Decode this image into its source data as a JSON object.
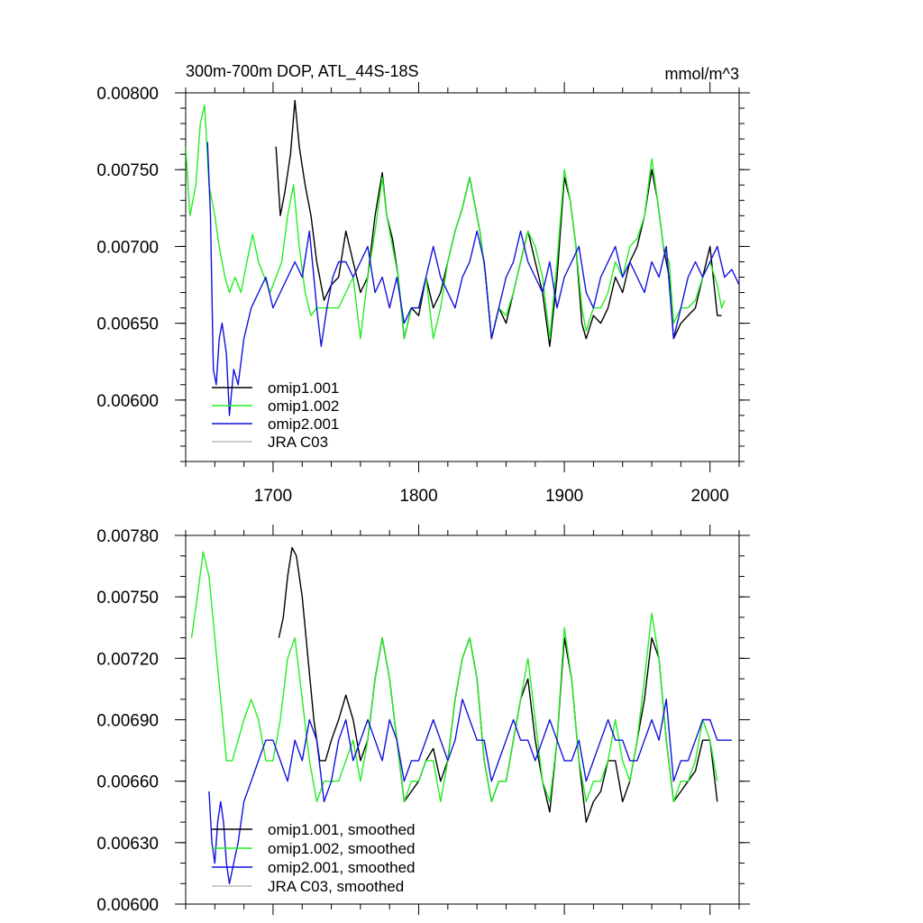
{
  "chart_data": [
    {
      "type": "line",
      "title": "300m-700m DOP, ATL_44S-18S",
      "units": "mmol/m^3",
      "xlim": [
        1640,
        2020
      ],
      "ylim": [
        0.0056,
        0.008
      ],
      "yticks": [
        "0.00600",
        "0.00650",
        "0.00700",
        "0.00750",
        "0.00800"
      ],
      "ytick_values": [
        0.006,
        0.0065,
        0.007,
        0.0075,
        0.008
      ],
      "xticks": [
        "1700",
        "1800",
        "1900",
        "2000"
      ],
      "xtick_values": [
        1700,
        1800,
        1900,
        2000
      ],
      "series": [
        {
          "name": "omip1.001",
          "color": "#000000",
          "x": [
            1702,
            1705,
            1708,
            1712,
            1715,
            1718,
            1722,
            1726,
            1730,
            1735,
            1740,
            1745,
            1750,
            1755,
            1760,
            1765,
            1770,
            1775,
            1778,
            1782,
            1786,
            1790,
            1795,
            1800,
            1805,
            1810,
            1815,
            1820,
            1825,
            1830,
            1835,
            1838,
            1842,
            1846,
            1850,
            1855,
            1860,
            1865,
            1870,
            1875,
            1880,
            1885,
            1890,
            1895,
            1900,
            1904,
            1908,
            1912,
            1915,
            1920,
            1925,
            1930,
            1935,
            1940,
            1945,
            1950,
            1955,
            1960,
            1964,
            1968,
            1972,
            1975,
            1980,
            1985,
            1990,
            1995,
            2000,
            2005,
            2008
          ],
          "y": [
            0.00765,
            0.0072,
            0.00735,
            0.0076,
            0.00795,
            0.00765,
            0.0074,
            0.0072,
            0.0069,
            0.00665,
            0.00675,
            0.0068,
            0.0071,
            0.0069,
            0.0067,
            0.0068,
            0.0072,
            0.00748,
            0.0072,
            0.00705,
            0.0068,
            0.0064,
            0.0066,
            0.00655,
            0.0068,
            0.0066,
            0.0067,
            0.0069,
            0.0071,
            0.00725,
            0.00745,
            0.0073,
            0.0071,
            0.0068,
            0.0064,
            0.0066,
            0.0065,
            0.0067,
            0.0069,
            0.0071,
            0.0069,
            0.0067,
            0.00635,
            0.0068,
            0.00745,
            0.0073,
            0.007,
            0.0065,
            0.0064,
            0.00655,
            0.0065,
            0.0066,
            0.0068,
            0.0067,
            0.0069,
            0.007,
            0.0072,
            0.0075,
            0.0073,
            0.007,
            0.0068,
            0.0064,
            0.0065,
            0.00655,
            0.0066,
            0.0068,
            0.007,
            0.00655,
            0.00655
          ]
        },
        {
          "name": "omip1.002",
          "color": "#22ee22",
          "x": [
            1640,
            1643,
            1647,
            1650,
            1653,
            1656,
            1660,
            1663,
            1667,
            1670,
            1674,
            1678,
            1682,
            1686,
            1690,
            1694,
            1698,
            1702,
            1706,
            1710,
            1714,
            1718,
            1722,
            1726,
            1730,
            1735,
            1740,
            1745,
            1750,
            1755,
            1760,
            1765,
            1770,
            1775,
            1778,
            1782,
            1786,
            1790,
            1795,
            1800,
            1805,
            1810,
            1815,
            1820,
            1825,
            1830,
            1835,
            1838,
            1842,
            1846,
            1850,
            1855,
            1860,
            1865,
            1870,
            1875,
            1880,
            1885,
            1890,
            1895,
            1900,
            1904,
            1908,
            1912,
            1915,
            1920,
            1925,
            1930,
            1935,
            1940,
            1945,
            1950,
            1955,
            1960,
            1964,
            1968,
            1972,
            1975,
            1980,
            1985,
            1990,
            1995,
            2000,
            2005,
            2008,
            2010
          ],
          "y": [
            0.00765,
            0.0072,
            0.0074,
            0.0078,
            0.00792,
            0.0074,
            0.0072,
            0.007,
            0.0068,
            0.0067,
            0.0068,
            0.0067,
            0.0069,
            0.00708,
            0.0069,
            0.0068,
            0.0067,
            0.0068,
            0.0069,
            0.0072,
            0.0074,
            0.007,
            0.0067,
            0.00655,
            0.0066,
            0.0066,
            0.0066,
            0.0066,
            0.0067,
            0.0068,
            0.0064,
            0.0068,
            0.0071,
            0.00745,
            0.0072,
            0.007,
            0.0068,
            0.0064,
            0.0066,
            0.0066,
            0.0068,
            0.0064,
            0.0066,
            0.0069,
            0.0071,
            0.00725,
            0.00745,
            0.0073,
            0.0071,
            0.0068,
            0.0064,
            0.0066,
            0.00655,
            0.0067,
            0.0069,
            0.0071,
            0.007,
            0.0068,
            0.0064,
            0.0069,
            0.0075,
            0.0073,
            0.007,
            0.0066,
            0.00645,
            0.0066,
            0.0066,
            0.0067,
            0.0069,
            0.0068,
            0.007,
            0.00705,
            0.0072,
            0.00757,
            0.0073,
            0.007,
            0.0069,
            0.0065,
            0.0066,
            0.0066,
            0.00665,
            0.0068,
            0.0069,
            0.00675,
            0.0066,
            0.00665
          ]
        },
        {
          "name": "omip2.001",
          "color": "#1111dd",
          "x": [
            1655,
            1657,
            1659,
            1661,
            1663,
            1665,
            1668,
            1670,
            1673,
            1676,
            1680,
            1685,
            1690,
            1695,
            1700,
            1705,
            1710,
            1715,
            1720,
            1725,
            1728,
            1730,
            1733,
            1737,
            1741,
            1745,
            1750,
            1755,
            1760,
            1765,
            1770,
            1775,
            1780,
            1785,
            1790,
            1795,
            1800,
            1805,
            1810,
            1815,
            1820,
            1825,
            1830,
            1835,
            1840,
            1845,
            1850,
            1855,
            1860,
            1865,
            1870,
            1875,
            1880,
            1885,
            1890,
            1895,
            1900,
            1905,
            1910,
            1915,
            1920,
            1925,
            1930,
            1935,
            1940,
            1945,
            1950,
            1955,
            1960,
            1965,
            1970,
            1975,
            1980,
            1985,
            1990,
            1995,
            2000,
            2005,
            2010,
            2015,
            2020
          ],
          "y": [
            0.00768,
            0.0072,
            0.0062,
            0.0061,
            0.0064,
            0.0065,
            0.0063,
            0.0059,
            0.0062,
            0.0061,
            0.0064,
            0.0066,
            0.0067,
            0.0068,
            0.0066,
            0.0067,
            0.0068,
            0.0069,
            0.0068,
            0.0071,
            0.0068,
            0.0066,
            0.00635,
            0.0066,
            0.0068,
            0.0069,
            0.0069,
            0.0068,
            0.0069,
            0.007,
            0.0067,
            0.0068,
            0.0066,
            0.0068,
            0.0065,
            0.0066,
            0.0066,
            0.0068,
            0.007,
            0.0068,
            0.0067,
            0.0066,
            0.0068,
            0.0069,
            0.0071,
            0.0069,
            0.0064,
            0.0066,
            0.0068,
            0.0069,
            0.0071,
            0.0069,
            0.0068,
            0.0067,
            0.0069,
            0.0066,
            0.0068,
            0.0069,
            0.007,
            0.0067,
            0.0066,
            0.0068,
            0.0069,
            0.007,
            0.0068,
            0.0069,
            0.0068,
            0.0067,
            0.0069,
            0.0068,
            0.007,
            0.0064,
            0.0066,
            0.0068,
            0.0069,
            0.0068,
            0.0069,
            0.007,
            0.0068,
            0.00685,
            0.00675
          ]
        },
        {
          "name": "JRA C03",
          "color": "#bbbbbb",
          "x": [],
          "y": []
        }
      ]
    },
    {
      "type": "line",
      "title": "",
      "xlim": [
        1640,
        2020
      ],
      "ylim": [
        0.006,
        0.0078
      ],
      "yticks": [
        "0.00600",
        "0.00630",
        "0.00660",
        "0.00690",
        "0.00720",
        "0.00750",
        "0.00780"
      ],
      "ytick_values": [
        0.006,
        0.0063,
        0.0066,
        0.0069,
        0.0072,
        0.0075,
        0.0078
      ],
      "xticks": [],
      "xtick_values": [
        1700,
        1800,
        1900,
        2000
      ],
      "series": [
        {
          "name": "omip1.001, smoothed",
          "color": "#000000",
          "x": [
            1704,
            1707,
            1710,
            1713,
            1716,
            1720,
            1724,
            1728,
            1732,
            1736,
            1740,
            1745,
            1750,
            1755,
            1760,
            1765,
            1770,
            1775,
            1780,
            1785,
            1790,
            1795,
            1800,
            1805,
            1810,
            1815,
            1820,
            1825,
            1830,
            1835,
            1840,
            1845,
            1850,
            1855,
            1860,
            1865,
            1870,
            1875,
            1880,
            1885,
            1890,
            1895,
            1900,
            1905,
            1910,
            1915,
            1920,
            1925,
            1930,
            1935,
            1940,
            1945,
            1950,
            1955,
            1960,
            1965,
            1970,
            1975,
            1980,
            1985,
            1990,
            1995,
            2000,
            2005
          ],
          "y": [
            0.0073,
            0.0074,
            0.0076,
            0.00774,
            0.0077,
            0.0075,
            0.0072,
            0.0069,
            0.0067,
            0.0067,
            0.0068,
            0.0069,
            0.00702,
            0.0069,
            0.0067,
            0.0068,
            0.0071,
            0.0073,
            0.0071,
            0.0068,
            0.0065,
            0.00655,
            0.0066,
            0.0067,
            0.00676,
            0.0066,
            0.0067,
            0.007,
            0.0072,
            0.0073,
            0.0071,
            0.0067,
            0.0065,
            0.0066,
            0.0066,
            0.0068,
            0.007,
            0.0071,
            0.0068,
            0.0066,
            0.00645,
            0.0068,
            0.0073,
            0.0071,
            0.0067,
            0.0064,
            0.0065,
            0.00655,
            0.0067,
            0.0067,
            0.0065,
            0.0066,
            0.0068,
            0.007,
            0.0073,
            0.0072,
            0.0068,
            0.0065,
            0.00655,
            0.0066,
            0.00665,
            0.0068,
            0.0068,
            0.0065
          ]
        },
        {
          "name": "omip1.002, smoothed",
          "color": "#22ee22",
          "x": [
            1644,
            1648,
            1652,
            1656,
            1660,
            1664,
            1668,
            1672,
            1676,
            1680,
            1685,
            1690,
            1695,
            1700,
            1705,
            1710,
            1715,
            1720,
            1725,
            1730,
            1735,
            1740,
            1745,
            1750,
            1755,
            1760,
            1765,
            1770,
            1775,
            1780,
            1785,
            1790,
            1795,
            1800,
            1805,
            1810,
            1815,
            1820,
            1825,
            1830,
            1835,
            1840,
            1845,
            1850,
            1855,
            1860,
            1865,
            1870,
            1875,
            1880,
            1885,
            1890,
            1895,
            1900,
            1905,
            1910,
            1915,
            1920,
            1925,
            1930,
            1935,
            1940,
            1945,
            1950,
            1955,
            1960,
            1965,
            1970,
            1975,
            1980,
            1985,
            1990,
            1995,
            2000,
            2005
          ],
          "y": [
            0.0073,
            0.0075,
            0.00772,
            0.0076,
            0.0073,
            0.007,
            0.0067,
            0.0067,
            0.0068,
            0.0069,
            0.007,
            0.0069,
            0.0067,
            0.0067,
            0.0069,
            0.0072,
            0.0073,
            0.007,
            0.0067,
            0.0065,
            0.0066,
            0.0066,
            0.0066,
            0.0067,
            0.0068,
            0.0066,
            0.0068,
            0.0071,
            0.0073,
            0.0071,
            0.0068,
            0.0065,
            0.0066,
            0.0066,
            0.0067,
            0.0067,
            0.0065,
            0.0067,
            0.007,
            0.0072,
            0.0073,
            0.0071,
            0.0067,
            0.0065,
            0.0066,
            0.0066,
            0.0068,
            0.007,
            0.0072,
            0.0069,
            0.0066,
            0.0065,
            0.0068,
            0.00735,
            0.0071,
            0.0067,
            0.0065,
            0.0066,
            0.0066,
            0.0067,
            0.0069,
            0.0067,
            0.0066,
            0.0068,
            0.0071,
            0.00742,
            0.0072,
            0.0068,
            0.0065,
            0.0066,
            0.0066,
            0.0067,
            0.0069,
            0.0068,
            0.0066
          ]
        },
        {
          "name": "omip2.001, smoothed",
          "color": "#1111dd",
          "x": [
            1656,
            1658,
            1660,
            1662,
            1664,
            1666,
            1668,
            1670,
            1673,
            1676,
            1680,
            1685,
            1690,
            1695,
            1700,
            1705,
            1710,
            1715,
            1720,
            1725,
            1730,
            1735,
            1740,
            1745,
            1750,
            1755,
            1760,
            1765,
            1770,
            1775,
            1780,
            1785,
            1790,
            1795,
            1800,
            1805,
            1810,
            1815,
            1820,
            1825,
            1830,
            1835,
            1840,
            1845,
            1850,
            1855,
            1860,
            1865,
            1870,
            1875,
            1880,
            1885,
            1890,
            1895,
            1900,
            1905,
            1910,
            1915,
            1920,
            1925,
            1930,
            1935,
            1940,
            1945,
            1950,
            1955,
            1960,
            1965,
            1970,
            1975,
            1980,
            1985,
            1990,
            1995,
            2000,
            2005,
            2010,
            2015
          ],
          "y": [
            0.00655,
            0.0063,
            0.0062,
            0.0064,
            0.0065,
            0.0064,
            0.0062,
            0.0061,
            0.0062,
            0.0063,
            0.0065,
            0.0066,
            0.0067,
            0.0068,
            0.0068,
            0.0067,
            0.0066,
            0.0068,
            0.0067,
            0.0069,
            0.0068,
            0.0065,
            0.0066,
            0.0068,
            0.0069,
            0.0067,
            0.0068,
            0.0069,
            0.0068,
            0.0067,
            0.0069,
            0.0068,
            0.0066,
            0.0067,
            0.0067,
            0.0068,
            0.0069,
            0.0068,
            0.0067,
            0.0068,
            0.007,
            0.0069,
            0.0068,
            0.0068,
            0.0066,
            0.0067,
            0.0068,
            0.0069,
            0.0068,
            0.0068,
            0.0067,
            0.0068,
            0.0069,
            0.0068,
            0.0067,
            0.0067,
            0.0068,
            0.0066,
            0.0067,
            0.0068,
            0.0069,
            0.0068,
            0.0068,
            0.0067,
            0.0067,
            0.0068,
            0.0069,
            0.0068,
            0.007,
            0.0066,
            0.0067,
            0.0067,
            0.0068,
            0.0069,
            0.0069,
            0.0068,
            0.0068,
            0.0068
          ]
        },
        {
          "name": "JRA C03, smoothed",
          "color": "#bbbbbb",
          "x": [],
          "y": []
        }
      ]
    }
  ]
}
